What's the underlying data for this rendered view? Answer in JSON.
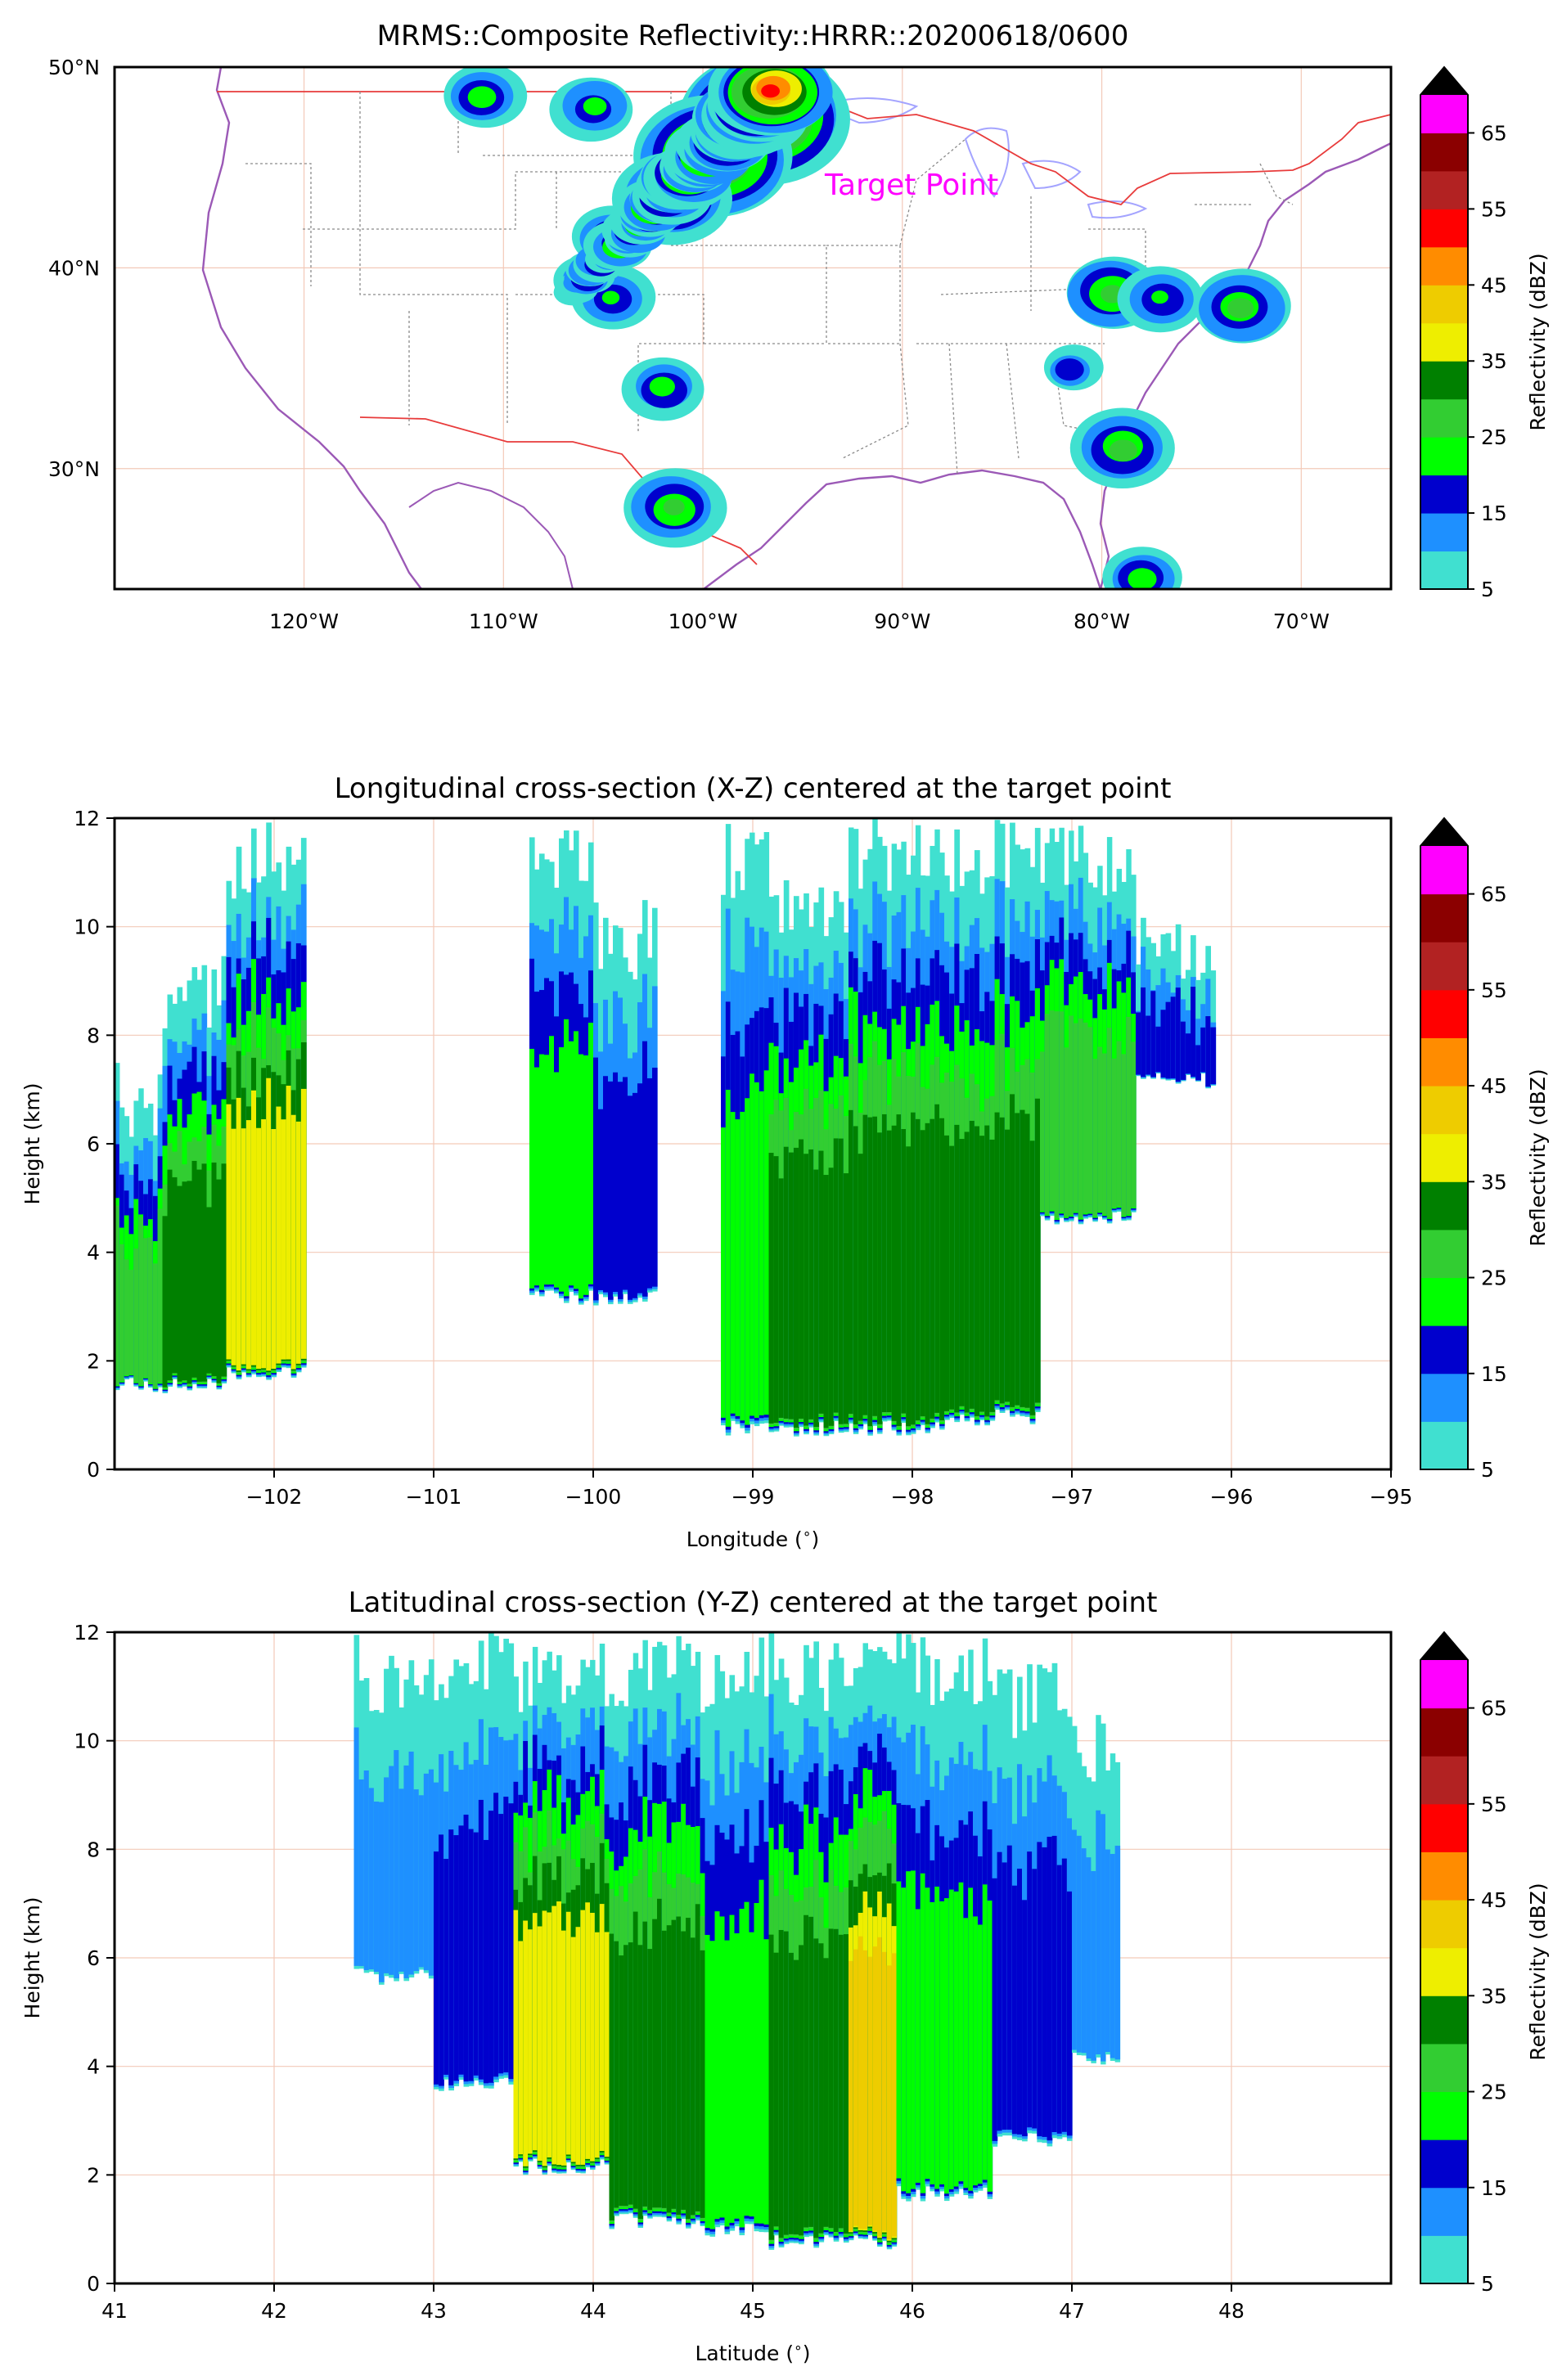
{
  "colorbar": {
    "label": "Reflectivity (dBZ)",
    "ticks": [
      "5",
      "15",
      "25",
      "35",
      "45",
      "55",
      "65"
    ],
    "levels": [
      5,
      10,
      15,
      20,
      25,
      30,
      35,
      40,
      45,
      50,
      55,
      60,
      65,
      70
    ],
    "colors": [
      "#40e0d0",
      "#1e90ff",
      "#0000cd",
      "#00ff00",
      "#32cd32",
      "#008000",
      "#eeee00",
      "#eecc00",
      "#ff8c00",
      "#ff0000",
      "#b22222",
      "#8b0000",
      "#ff00ff"
    ],
    "extend_color": "#000000"
  },
  "chart_data": [
    {
      "type": "heatmap",
      "title": "MRMS::Composite Reflectivity::HRRR::20200618/0600",
      "xlabel": "",
      "ylabel": "",
      "x_ticks": [
        "120°W",
        "110°W",
        "100°W",
        "90°W",
        "80°W",
        "70°W"
      ],
      "y_ticks": [
        "30°N",
        "40°N",
        "50°N"
      ],
      "annotation": "Target Point",
      "xlim": [
        -129.5,
        -65.5
      ],
      "ylim": [
        24.0,
        50.0
      ],
      "storm_cells": [
        {
          "lon": -97.0,
          "lat": 47.5,
          "dbz": 45
        },
        {
          "lon": -99.5,
          "lat": 45.5,
          "dbz": 40
        },
        {
          "lon": -101.5,
          "lat": 43.5,
          "dbz": 30
        },
        {
          "lon": -104.5,
          "lat": 41.5,
          "dbz": 20
        },
        {
          "lon": -106.0,
          "lat": 39.5,
          "dbz": 15
        },
        {
          "lon": -104.5,
          "lat": 38.5,
          "dbz": 20
        },
        {
          "lon": -102.0,
          "lat": 34.0,
          "dbz": 20
        },
        {
          "lon": -101.5,
          "lat": 28.0,
          "dbz": 25
        },
        {
          "lon": -79.5,
          "lat": 38.8,
          "dbz": 25
        },
        {
          "lon": -77.0,
          "lat": 38.5,
          "dbz": 20
        },
        {
          "lon": -73.0,
          "lat": 38.0,
          "dbz": 25
        },
        {
          "lon": -81.5,
          "lat": 35.0,
          "dbz": 15
        },
        {
          "lon": -79.0,
          "lat": 31.0,
          "dbz": 25
        },
        {
          "lon": -78.0,
          "lat": 24.5,
          "dbz": 20
        },
        {
          "lon": -111.0,
          "lat": 48.5,
          "dbz": 20
        },
        {
          "lon": -105.5,
          "lat": 48.0,
          "dbz": 20
        }
      ]
    },
    {
      "type": "area",
      "title": "Longitudinal cross-section (X-Z) centered at the target point",
      "xlabel": "Longitude ($^\\circ$)",
      "ylabel": "Height (km)",
      "x_ticks": [
        "−102",
        "−101",
        "−100",
        "−99",
        "−98",
        "−97",
        "−96",
        "−95"
      ],
      "y_ticks": [
        "0",
        "2",
        "4",
        "6",
        "8",
        "10",
        "12"
      ],
      "xlim": [
        -103.0,
        -95.0
      ],
      "ylim": [
        0,
        12
      ],
      "columns": [
        {
          "x0": -103.0,
          "x1": -102.7,
          "base": 1.4,
          "top": 7.5,
          "core_dbz": 25
        },
        {
          "x0": -102.7,
          "x1": -102.3,
          "base": 1.4,
          "top": 9.5,
          "core_dbz": 30
        },
        {
          "x0": -102.3,
          "x1": -101.8,
          "base": 1.6,
          "top": 12.0,
          "core_dbz": 35
        },
        {
          "x0": -100.4,
          "x1": -100.0,
          "base": 3.0,
          "top": 12.0,
          "core_dbz": 20
        },
        {
          "x0": -100.0,
          "x1": -99.6,
          "base": 3.0,
          "top": 10.5,
          "core_dbz": 15
        },
        {
          "x0": -99.2,
          "x1": -98.9,
          "base": 0.6,
          "top": 12.0,
          "core_dbz": 20
        },
        {
          "x0": -98.9,
          "x1": -98.4,
          "base": 0.6,
          "top": 11.0,
          "core_dbz": 30
        },
        {
          "x0": -98.4,
          "x1": -97.8,
          "base": 0.6,
          "top": 12.0,
          "core_dbz": 30
        },
        {
          "x0": -97.8,
          "x1": -97.2,
          "base": 0.8,
          "top": 12.0,
          "core_dbz": 30
        },
        {
          "x0": -97.2,
          "x1": -96.6,
          "base": 4.5,
          "top": 12.0,
          "core_dbz": 25
        },
        {
          "x0": -96.6,
          "x1": -96.1,
          "base": 7.0,
          "top": 10.5,
          "core_dbz": 15
        }
      ]
    },
    {
      "type": "area",
      "title": "Latitudinal cross-section (Y-Z) centered at the target point",
      "xlabel": "Latitude ($^\\circ$)",
      "ylabel": "Height (km)",
      "x_ticks": [
        "41",
        "42",
        "43",
        "44",
        "45",
        "46",
        "47",
        "48"
      ],
      "y_ticks": [
        "0",
        "2",
        "4",
        "6",
        "8",
        "10",
        "12"
      ],
      "xlim": [
        41.0,
        49.0
      ],
      "ylim": [
        0,
        12
      ],
      "columns": [
        {
          "x0": 42.5,
          "x1": 43.0,
          "base": 5.5,
          "top": 12.0,
          "core_dbz": 10
        },
        {
          "x0": 43.0,
          "x1": 43.5,
          "base": 3.5,
          "top": 12.0,
          "core_dbz": 15
        },
        {
          "x0": 43.5,
          "x1": 44.1,
          "base": 2.0,
          "top": 12.0,
          "core_dbz": 35
        },
        {
          "x0": 44.1,
          "x1": 44.7,
          "base": 1.0,
          "top": 12.0,
          "core_dbz": 30
        },
        {
          "x0": 44.7,
          "x1": 45.1,
          "base": 0.8,
          "top": 12.0,
          "core_dbz": 20
        },
        {
          "x0": 45.1,
          "x1": 45.6,
          "base": 0.6,
          "top": 12.0,
          "core_dbz": 30
        },
        {
          "x0": 45.6,
          "x1": 45.9,
          "base": 0.6,
          "top": 12.0,
          "core_dbz": 40
        },
        {
          "x0": 45.9,
          "x1": 46.5,
          "base": 1.5,
          "top": 12.0,
          "core_dbz": 20
        },
        {
          "x0": 46.5,
          "x1": 47.0,
          "base": 2.5,
          "top": 11.5,
          "core_dbz": 15
        },
        {
          "x0": 47.0,
          "x1": 47.3,
          "base": 4.0,
          "top": 10.5,
          "core_dbz": 10
        }
      ]
    }
  ]
}
